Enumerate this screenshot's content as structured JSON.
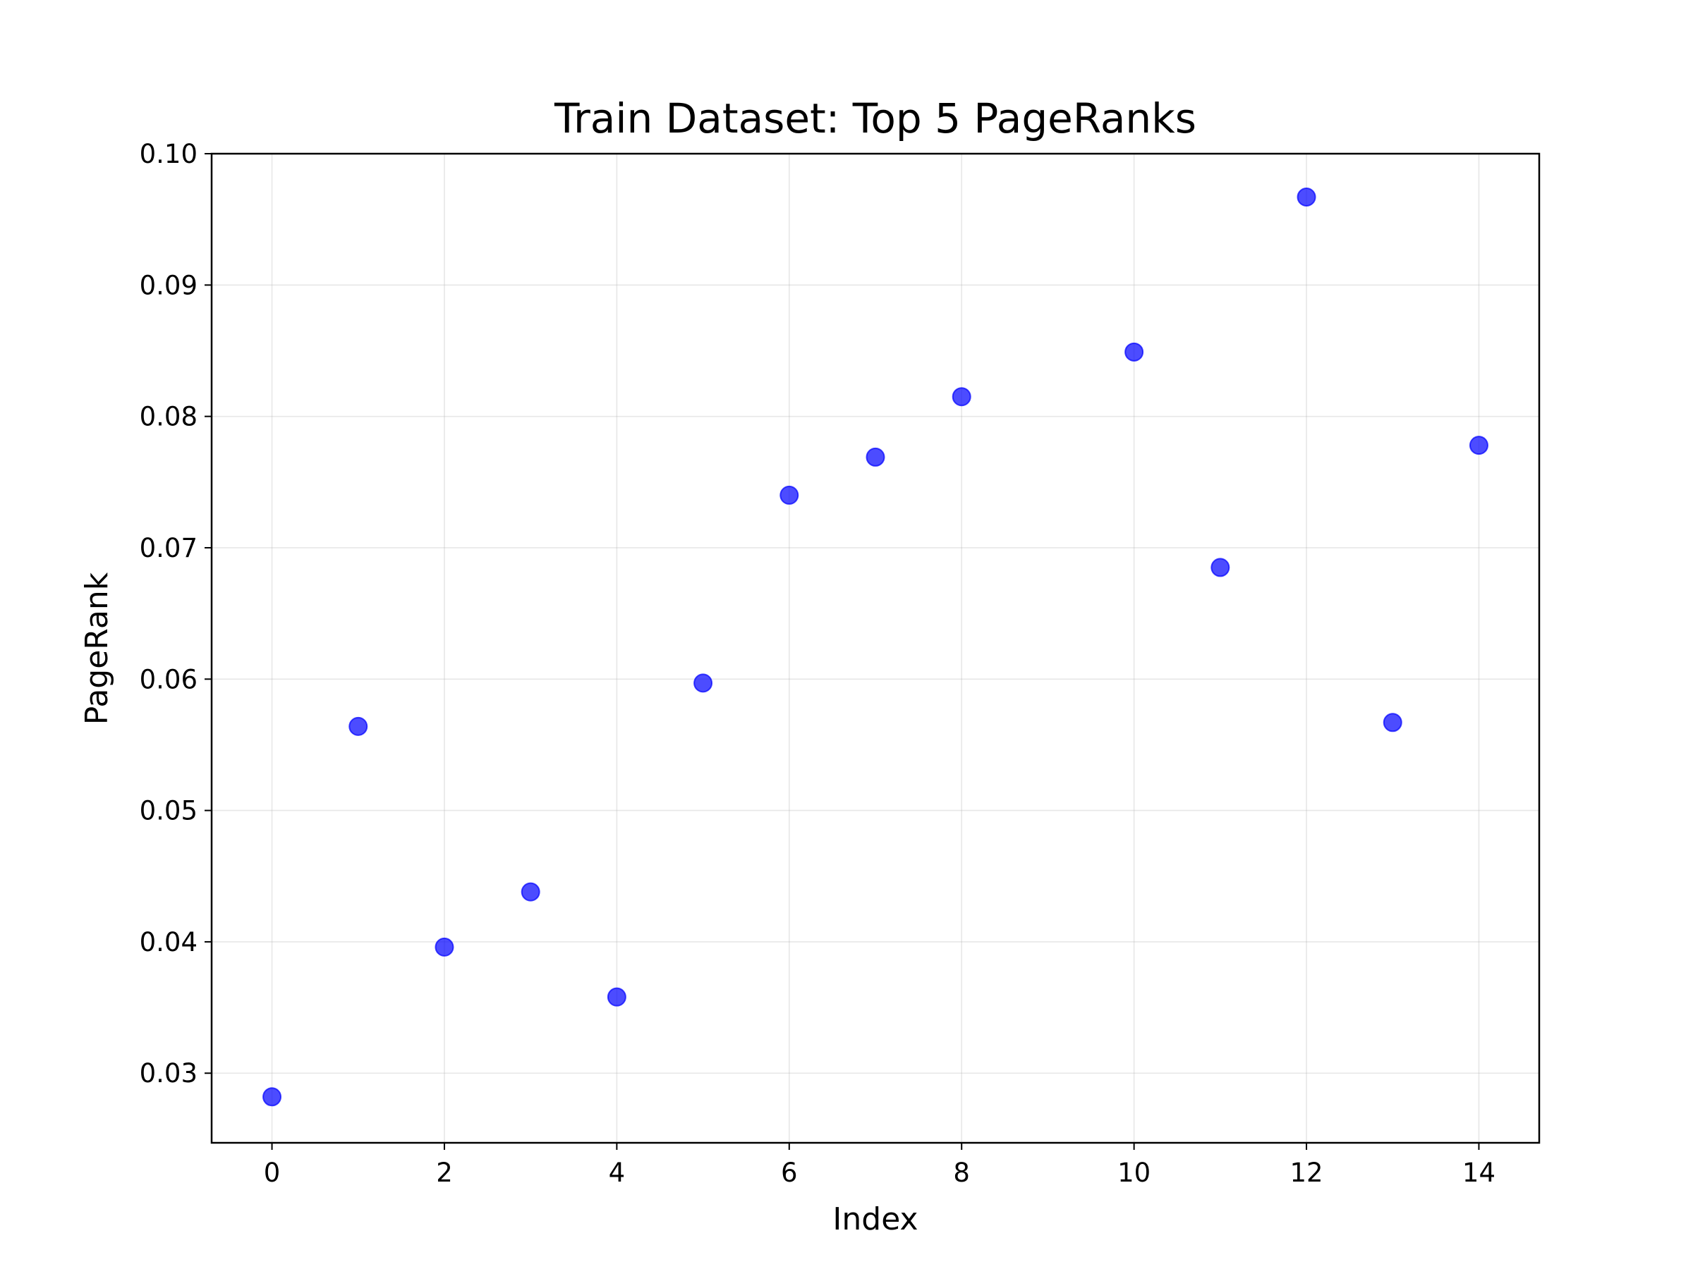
{
  "chart_data": {
    "type": "scatter",
    "title": "Train Dataset: Top 5 PageRanks",
    "xlabel": "Index",
    "ylabel": "PageRank",
    "xlim": [
      -0.7,
      14.7
    ],
    "ylim": [
      0.0247,
      0.1
    ],
    "xticks": [
      0,
      2,
      4,
      6,
      8,
      10,
      12,
      14
    ],
    "xtick_labels": [
      "0",
      "2",
      "4",
      "6",
      "8",
      "10",
      "12",
      "14"
    ],
    "yticks": [
      0.03,
      0.04,
      0.05,
      0.06,
      0.07,
      0.08,
      0.09,
      0.1
    ],
    "ytick_labels": [
      "0.03",
      "0.04",
      "0.05",
      "0.06",
      "0.07",
      "0.08",
      "0.09",
      "0.10"
    ],
    "grid": true,
    "marker_color": "#0000ff",
    "marker_alpha": 0.7,
    "series": [
      {
        "name": "PageRank",
        "x": [
          0,
          1,
          2,
          3,
          4,
          5,
          6,
          7,
          8,
          10,
          11,
          12,
          13,
          14
        ],
        "y": [
          0.0282,
          0.0564,
          0.0396,
          0.0438,
          0.0358,
          0.0597,
          0.074,
          0.0769,
          0.0815,
          0.0849,
          0.0685,
          0.0967,
          0.0567,
          0.0778
        ]
      }
    ]
  }
}
